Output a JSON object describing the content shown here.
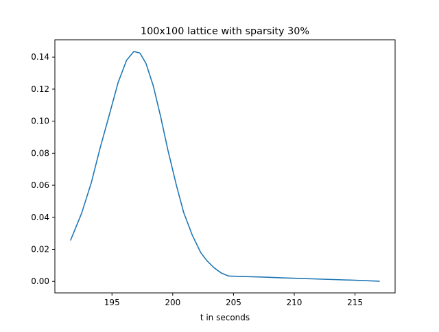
{
  "chart_data": {
    "type": "line",
    "title": "100x100 lattice with sparsity 30%",
    "xlabel": "t in seconds",
    "ylabel": "",
    "xlim": [
      190.3,
      218.3
    ],
    "ylim": [
      -0.0072,
      0.1508
    ],
    "xticks": [
      195,
      200,
      205,
      210,
      215
    ],
    "xtick_labels": [
      "195",
      "200",
      "205",
      "210",
      "215"
    ],
    "yticks": [
      0.0,
      0.02,
      0.04,
      0.06,
      0.08,
      0.1,
      0.12,
      0.14
    ],
    "ytick_labels": [
      "0.00",
      "0.02",
      "0.04",
      "0.06",
      "0.08",
      "0.10",
      "0.12",
      "0.14"
    ],
    "grid": false,
    "series": [
      {
        "color": "#1f77b4",
        "x": [
          191.6,
          192.5,
          193.3,
          194.0,
          194.8,
          195.5,
          196.2,
          196.8,
          197.3,
          197.8,
          198.4,
          199.0,
          199.6,
          200.3,
          200.9,
          201.6,
          202.3,
          202.8,
          203.4,
          204.0,
          204.6,
          205.5,
          207.0,
          209.0,
          211.0,
          213.0,
          215.0,
          217.0
        ],
        "y": [
          0.0258,
          0.0425,
          0.0616,
          0.0826,
          0.1045,
          0.124,
          0.138,
          0.1435,
          0.1425,
          0.136,
          0.122,
          0.103,
          0.082,
          0.06,
          0.043,
          0.029,
          0.018,
          0.013,
          0.0085,
          0.0052,
          0.0033,
          0.0031,
          0.0028,
          0.0022,
          0.0017,
          0.0012,
          0.0007,
          0.0001
        ]
      }
    ]
  }
}
